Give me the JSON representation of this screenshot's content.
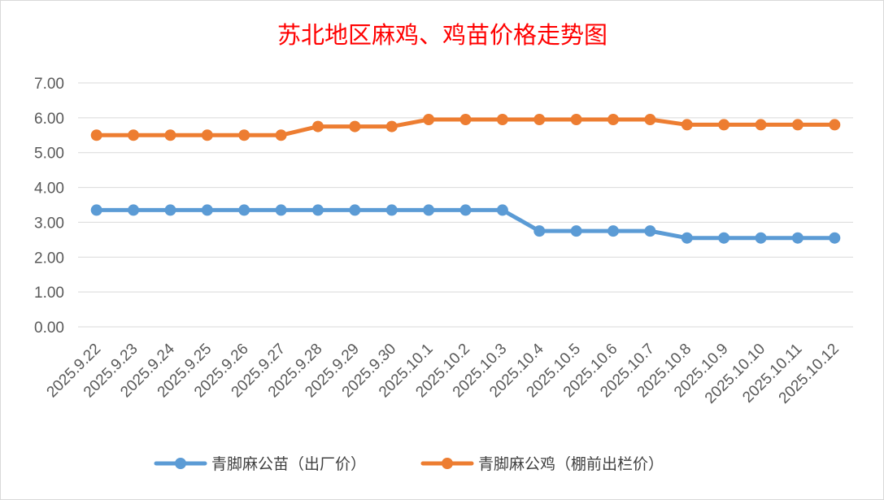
{
  "chart_data": {
    "type": "line",
    "title": "苏北地区麻鸡、鸡苗价格走势图",
    "categories": [
      "2025.9.22",
      "2025.9.23",
      "2025.9.24",
      "2025.9.25",
      "2025.9.26",
      "2025.9.27",
      "2025.9.28",
      "2025.9.29",
      "2025.9.30",
      "2025.10.1",
      "2025.10.2",
      "2025.10.3",
      "2025.10.4",
      "2025.10.5",
      "2025.10.6",
      "2025.10.7",
      "2025.10.8",
      "2025.10.9",
      "2025.10.10",
      "2025.10.11",
      "2025.10.12"
    ],
    "series": [
      {
        "name": "青脚麻公苗（出厂价）",
        "color": "#5b9bd5",
        "values": [
          3.35,
          3.35,
          3.35,
          3.35,
          3.35,
          3.35,
          3.35,
          3.35,
          3.35,
          3.35,
          3.35,
          3.35,
          2.75,
          2.75,
          2.75,
          2.75,
          2.55,
          2.55,
          2.55,
          2.55,
          2.55
        ]
      },
      {
        "name": "青脚麻公鸡（棚前出栏价）",
        "color": "#ed7d31",
        "values": [
          5.5,
          5.5,
          5.5,
          5.5,
          5.5,
          5.5,
          5.75,
          5.75,
          5.75,
          5.95,
          5.95,
          5.95,
          5.95,
          5.95,
          5.95,
          5.95,
          5.8,
          5.8,
          5.8,
          5.8,
          5.8
        ]
      }
    ],
    "ylim": [
      0,
      7
    ],
    "yticks": [
      "0.00",
      "1.00",
      "2.00",
      "3.00",
      "4.00",
      "5.00",
      "6.00",
      "7.00"
    ],
    "grid": true,
    "legend": "bottom",
    "gridColor": "#d9d9d9"
  }
}
